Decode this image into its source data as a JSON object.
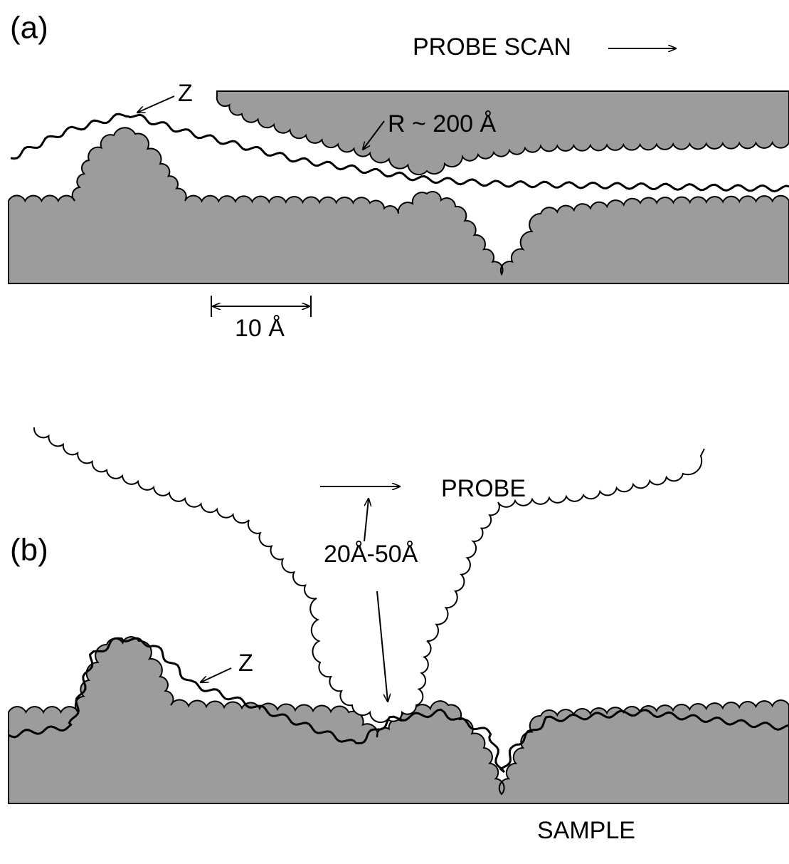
{
  "panel_a": {
    "label": "(a)",
    "probe_scan": "PROBE SCAN",
    "z_label": "Z",
    "radius_label": "R ~ 200 Å",
    "scale_label": "10 Å"
  },
  "panel_b": {
    "label": "(b)",
    "probe_label": "PROBE",
    "z_label": "Z",
    "size_label": "20Å-50Å",
    "sample_label": "SAMPLE"
  }
}
